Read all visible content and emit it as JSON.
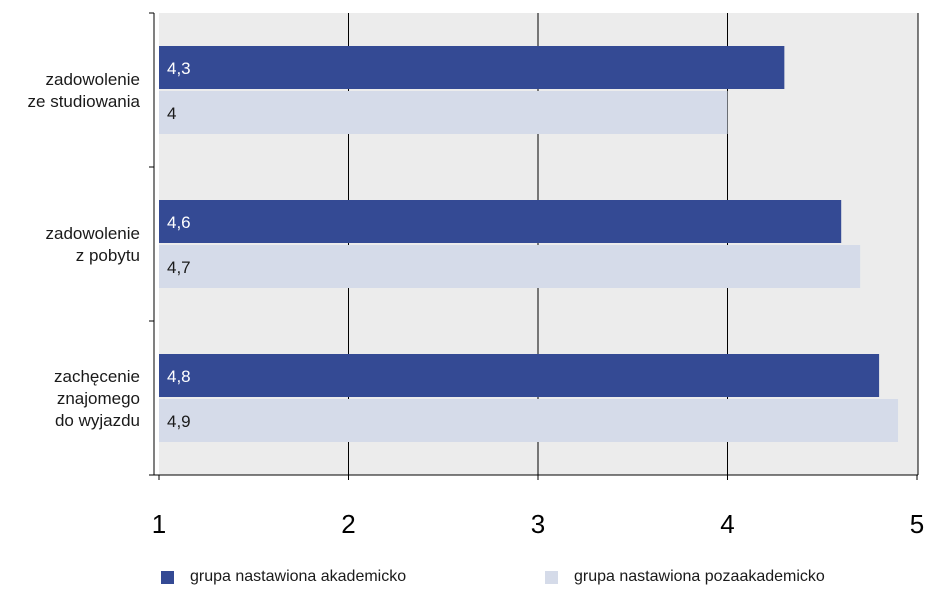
{
  "chart_data": {
    "type": "bar",
    "orientation": "horizontal",
    "categories": [
      [
        "zadowolenie",
        "ze studiowania"
      ],
      [
        "zadowolenie",
        "z pobytu"
      ],
      [
        "zachęcenie",
        "znajomego",
        "do wyjazdu"
      ]
    ],
    "series": [
      {
        "name": "grupa nastawiona akademicko",
        "values": [
          4.3,
          4.6,
          4.8
        ],
        "labels": [
          "4,3",
          "4,6",
          "4,8"
        ],
        "color": "#344a94",
        "label_color": "#ffffff"
      },
      {
        "name": "grupa nastawiona pozaakademicko",
        "values": [
          4,
          4.7,
          4.9
        ],
        "labels": [
          "4",
          "4,7",
          "4,9"
        ],
        "color": "#d5dbe9",
        "label_color": "#1a1a1a"
      }
    ],
    "xlim": [
      1,
      5
    ],
    "xticks": [
      "1",
      "2",
      "3",
      "4",
      "5"
    ],
    "grid": true,
    "plot_background": "#ececec",
    "legend_position": "bottom"
  }
}
